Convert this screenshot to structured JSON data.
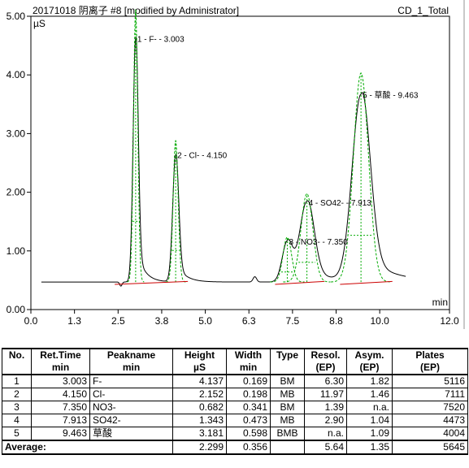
{
  "header": {
    "title": "20171018 阴离子 #8 [modified by Administrator]",
    "channel": "CD_1_Total"
  },
  "chart_data": {
    "type": "line",
    "ylabel": "µS",
    "xlabel": "min",
    "xlim": [
      0.0,
      12.0
    ],
    "ylim": [
      0.0,
      5.0
    ],
    "x_ticks": [
      "0.0",
      "1.3",
      "2.5",
      "3.8",
      "5.0",
      "6.3",
      "7.5",
      "8.8",
      "10.0",
      "12.0"
    ],
    "x_tick_values": [
      0.0,
      1.25,
      2.5,
      3.75,
      5.0,
      6.25,
      7.5,
      8.75,
      10.0,
      12.0
    ],
    "y_ticks": [
      "0.00",
      "1.00",
      "2.00",
      "3.00",
      "4.00",
      "5.00"
    ],
    "y_tick_values": [
      0,
      1,
      2,
      3,
      4,
      5
    ],
    "baseline": 0.47,
    "series": [
      {
        "type": "chromatogram",
        "color": "#000000"
      },
      {
        "type": "fitted-peaks",
        "color": "#00aa00"
      },
      {
        "type": "integration-baseline",
        "color": "#cc0000"
      }
    ],
    "bumps": [
      {
        "rt": 2.58,
        "height": -0.07,
        "width": 0.08
      },
      {
        "rt": 6.42,
        "height": 0.09,
        "width": 0.12
      }
    ],
    "peaks": [
      {
        "label": "1 - F- - 3.003",
        "rt": 3.003,
        "height": 4.137,
        "width": 0.169
      },
      {
        "label": "2 - Cl- - 4.150",
        "rt": 4.15,
        "height": 2.152,
        "width": 0.198
      },
      {
        "label": "3 - NO3- - 7.350",
        "rt": 7.35,
        "height": 0.682,
        "width": 0.341
      },
      {
        "label": "4 - SO42- - 7.913",
        "rt": 7.913,
        "height": 1.343,
        "width": 0.473
      },
      {
        "label": "5 - 草酸 - 9.463",
        "rt": 9.463,
        "height": 3.181,
        "width": 0.598
      }
    ]
  },
  "table": {
    "headers": [
      [
        "No.",
        "Ret.Time",
        "Peakname",
        "Height",
        "Width",
        "Type",
        "Resol.",
        "Asym.",
        "Plates"
      ],
      [
        "",
        "min",
        "min",
        "µS",
        "min",
        "",
        "(EP)",
        "(EP)",
        "(EP)"
      ]
    ],
    "rows": [
      [
        "1",
        "3.003",
        "F-",
        "4.137",
        "0.169",
        "BM",
        "6.30",
        "1.82",
        "5116"
      ],
      [
        "2",
        "4.150",
        "Cl-",
        "2.152",
        "0.198",
        "MB",
        "11.97",
        "1.46",
        "7111"
      ],
      [
        "3",
        "7.350",
        "NO3-",
        "0.682",
        "0.341",
        "BM",
        "1.39",
        "n.a.",
        "7520"
      ],
      [
        "4",
        "7.913",
        "SO42-",
        "1.343",
        "0.473",
        "MB",
        "2.90",
        "1.04",
        "4473"
      ],
      [
        "5",
        "9.463",
        "草酸",
        "3.181",
        "0.598",
        "BMB",
        "n.a.",
        "1.09",
        "4004"
      ]
    ],
    "average": {
      "label": "Average:",
      "height": "2.299",
      "width": "0.356",
      "resol": "5.64",
      "asym": "1.35",
      "plates": "5645"
    }
  }
}
